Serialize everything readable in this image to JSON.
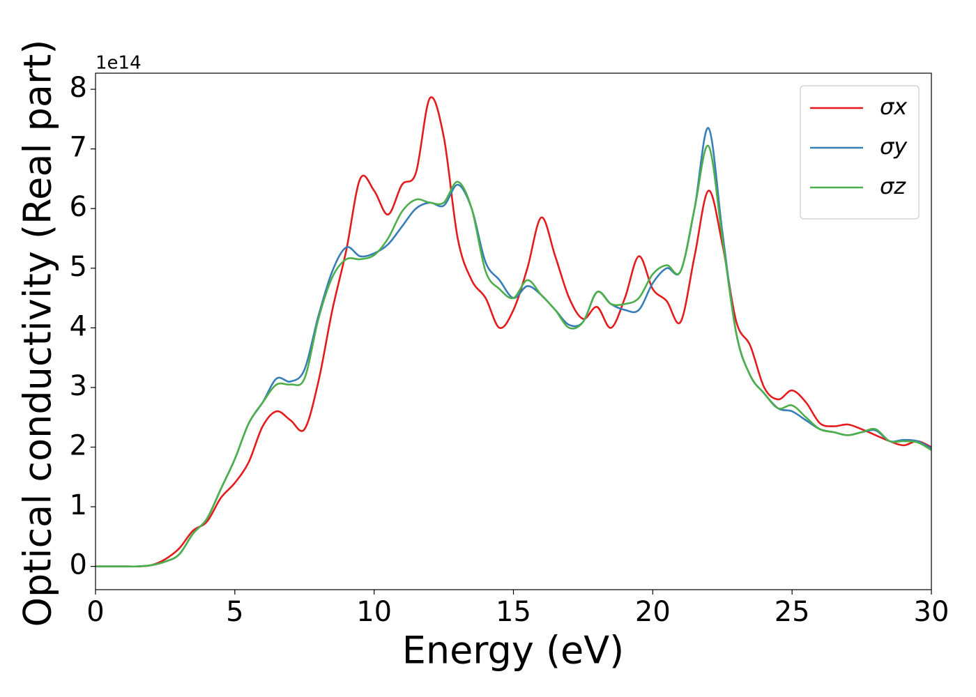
{
  "chart_data": {
    "type": "line",
    "x_label": "Energy (eV)",
    "y_label": "Optical conductivity (Real part)",
    "y_offset_label": "1e14",
    "x": [
      0,
      0.5,
      1,
      1.5,
      2,
      2.5,
      3,
      3.5,
      4,
      4.5,
      5,
      5.5,
      6,
      6.5,
      7,
      7.5,
      8,
      8.5,
      9,
      9.5,
      10,
      10.5,
      11,
      11.5,
      12,
      12.5,
      13,
      13.5,
      14,
      14.5,
      15,
      15.5,
      16,
      16.5,
      17,
      17.5,
      18,
      18.5,
      19,
      19.5,
      20,
      20.5,
      21,
      21.5,
      22,
      22.5,
      23,
      23.5,
      24,
      24.5,
      25,
      25.5,
      26,
      26.5,
      27,
      27.5,
      28,
      28.5,
      29,
      29.5,
      30
    ],
    "series": [
      {
        "name": "σx",
        "color": "#e41a1c",
        "values": [
          0,
          0,
          0,
          0,
          0.02,
          0.12,
          0.3,
          0.6,
          0.75,
          1.15,
          1.4,
          1.75,
          2.35,
          2.6,
          2.45,
          2.3,
          3.1,
          4.3,
          5.3,
          6.5,
          6.3,
          5.9,
          6.4,
          6.6,
          7.85,
          7.2,
          5.5,
          4.8,
          4.5,
          4.0,
          4.3,
          5.0,
          5.85,
          5.2,
          4.5,
          4.15,
          4.35,
          4.0,
          4.5,
          5.2,
          4.65,
          4.45,
          4.1,
          5.2,
          6.3,
          5.4,
          4.1,
          3.7,
          3.0,
          2.8,
          2.95,
          2.75,
          2.4,
          2.35,
          2.38,
          2.3,
          2.2,
          2.1,
          2.03,
          2.1,
          2.0
        ]
      },
      {
        "name": "σy",
        "color": "#377eb8",
        "values": [
          0,
          0,
          0,
          0,
          0.02,
          0.08,
          0.2,
          0.55,
          0.8,
          1.3,
          1.8,
          2.4,
          2.75,
          3.15,
          3.1,
          3.3,
          4.2,
          4.95,
          5.35,
          5.2,
          5.25,
          5.4,
          5.7,
          6.0,
          6.1,
          6.05,
          6.4,
          6.0,
          5.1,
          4.8,
          4.5,
          4.7,
          4.55,
          4.3,
          4.05,
          4.1,
          4.6,
          4.4,
          4.3,
          4.3,
          4.75,
          5.0,
          4.95,
          6.0,
          7.35,
          5.6,
          3.9,
          3.2,
          2.9,
          2.65,
          2.6,
          2.45,
          2.3,
          2.25,
          2.2,
          2.25,
          2.28,
          2.1,
          2.12,
          2.1,
          1.98
        ]
      },
      {
        "name": "σz",
        "color": "#4daf4a",
        "values": [
          0,
          0,
          0,
          0,
          0.02,
          0.08,
          0.2,
          0.55,
          0.8,
          1.3,
          1.8,
          2.4,
          2.75,
          3.05,
          3.05,
          3.15,
          4.15,
          4.85,
          5.15,
          5.15,
          5.22,
          5.5,
          5.95,
          6.15,
          6.1,
          6.1,
          6.45,
          6.0,
          4.95,
          4.65,
          4.5,
          4.8,
          4.55,
          4.3,
          4.0,
          4.1,
          4.6,
          4.4,
          4.4,
          4.5,
          4.9,
          5.05,
          4.95,
          6.0,
          7.05,
          5.5,
          3.9,
          3.2,
          2.9,
          2.65,
          2.7,
          2.5,
          2.3,
          2.25,
          2.2,
          2.25,
          2.3,
          2.1,
          2.1,
          2.08,
          1.95
        ]
      }
    ],
    "xlim": [
      0,
      30
    ],
    "xticks": [
      0,
      5,
      10,
      15,
      20,
      25,
      30
    ],
    "ylim": [
      -0.39,
      8.27
    ],
    "yticks": [
      0,
      1,
      2,
      3,
      4,
      5,
      6,
      7,
      8
    ],
    "legend": "upper right"
  }
}
